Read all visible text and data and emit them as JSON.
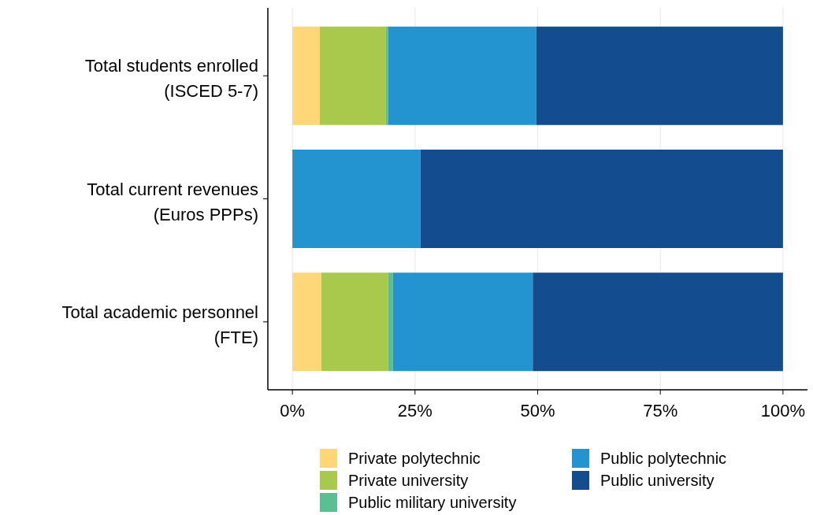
{
  "chart_data": {
    "type": "bar",
    "orientation": "horizontal",
    "stacked": true,
    "categories": [
      "Total students enrolled\n(ISCED 5-7)",
      "Total current revenues\n(Euros PPPs)",
      "Total academic personnel\n(FTE)"
    ],
    "series": [
      {
        "name": "Private polytechnic",
        "color": "#fdd778",
        "values": [
          5.6,
          0,
          5.9
        ]
      },
      {
        "name": "Private university",
        "color": "#a8c94c",
        "values": [
          13.4,
          0,
          13.6
        ]
      },
      {
        "name": "Public military university",
        "color": "#5bbf94",
        "values": [
          0.5,
          0,
          1.0
        ]
      },
      {
        "name": "Public polytechnic",
        "color": "#2394cf",
        "values": [
          30.2,
          26.1,
          28.5
        ]
      },
      {
        "name": "Public university",
        "color": "#134d8f",
        "values": [
          50.3,
          73.9,
          51.0
        ]
      }
    ],
    "xlim": [
      -5,
      105
    ],
    "xticks": [
      {
        "value": 0,
        "label": "0%"
      },
      {
        "value": 25,
        "label": "25%"
      },
      {
        "value": 50,
        "label": "50%"
      },
      {
        "value": 75,
        "label": "75%"
      },
      {
        "value": 100,
        "label": "100%"
      }
    ],
    "grid": "x",
    "legend": "bottom"
  }
}
